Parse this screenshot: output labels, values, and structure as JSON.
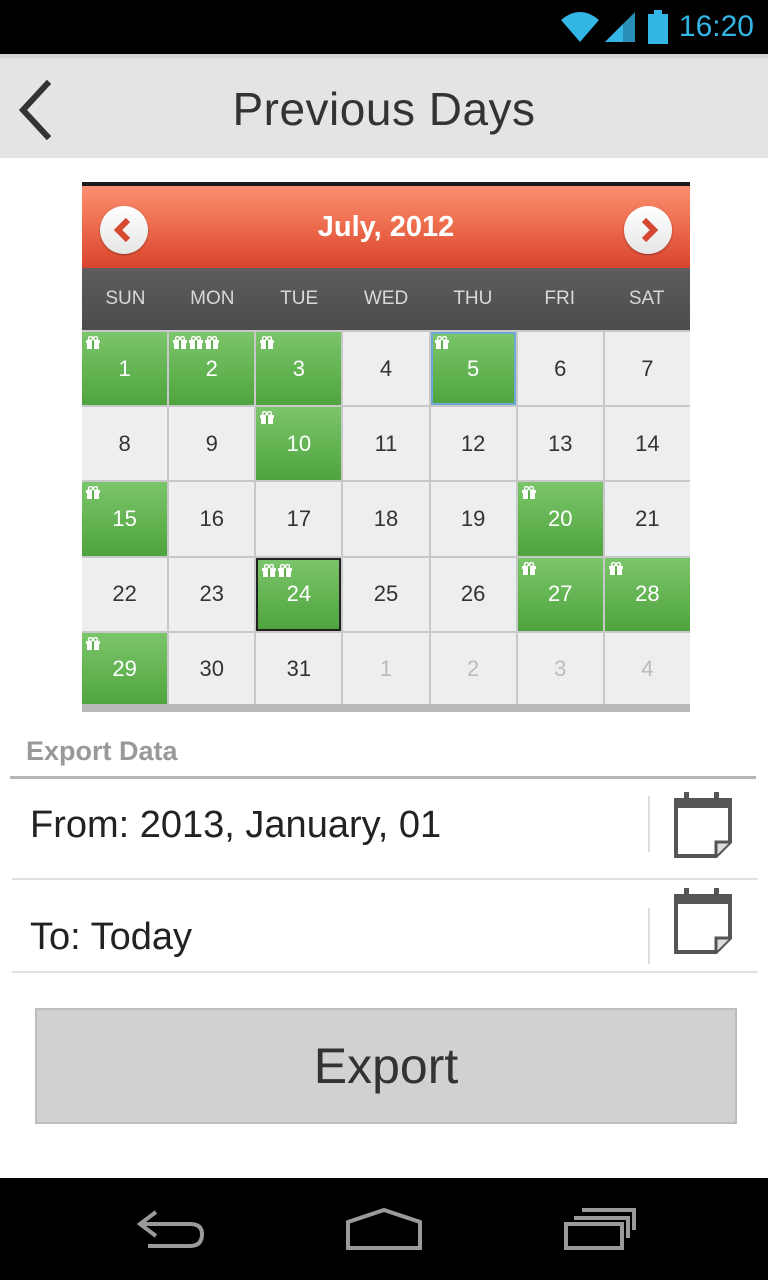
{
  "status_bar": {
    "time": "16:20",
    "icons": [
      "wifi-icon",
      "cell-signal-icon",
      "battery-icon"
    ],
    "accent": "#33b5e5"
  },
  "action_bar": {
    "title": "Previous Days",
    "back_icon": "chevron-left-icon"
  },
  "calendar": {
    "month_title": "July, 2012",
    "weekdays": [
      "SUN",
      "MON",
      "TUE",
      "WED",
      "THU",
      "FRI",
      "SAT"
    ],
    "days": [
      {
        "label": "1",
        "event": true,
        "gifts": 1
      },
      {
        "label": "2",
        "event": true,
        "gifts": 3
      },
      {
        "label": "3",
        "event": true,
        "gifts": 1
      },
      {
        "label": "4",
        "event": false,
        "gifts": 0
      },
      {
        "label": "5",
        "event": true,
        "gifts": 1,
        "selected": true
      },
      {
        "label": "6",
        "event": false,
        "gifts": 0
      },
      {
        "label": "7",
        "event": false,
        "gifts": 0
      },
      {
        "label": "8",
        "event": false,
        "gifts": 0
      },
      {
        "label": "9",
        "event": false,
        "gifts": 0
      },
      {
        "label": "10",
        "event": true,
        "gifts": 1
      },
      {
        "label": "11",
        "event": false,
        "gifts": 0
      },
      {
        "label": "12",
        "event": false,
        "gifts": 0
      },
      {
        "label": "13",
        "event": false,
        "gifts": 0
      },
      {
        "label": "14",
        "event": false,
        "gifts": 0
      },
      {
        "label": "15",
        "event": true,
        "gifts": 1
      },
      {
        "label": "16",
        "event": false,
        "gifts": 0
      },
      {
        "label": "17",
        "event": false,
        "gifts": 0
      },
      {
        "label": "18",
        "event": false,
        "gifts": 0
      },
      {
        "label": "19",
        "event": false,
        "gifts": 0
      },
      {
        "label": "20",
        "event": true,
        "gifts": 1
      },
      {
        "label": "21",
        "event": false,
        "gifts": 0
      },
      {
        "label": "22",
        "event": false,
        "gifts": 0
      },
      {
        "label": "23",
        "event": false,
        "gifts": 0
      },
      {
        "label": "24",
        "event": true,
        "gifts": 2,
        "today": true
      },
      {
        "label": "25",
        "event": false,
        "gifts": 0
      },
      {
        "label": "26",
        "event": false,
        "gifts": 0
      },
      {
        "label": "27",
        "event": true,
        "gifts": 1
      },
      {
        "label": "28",
        "event": true,
        "gifts": 1
      },
      {
        "label": "29",
        "event": true,
        "gifts": 1
      },
      {
        "label": "30",
        "event": false,
        "gifts": 0
      },
      {
        "label": "31",
        "event": false,
        "gifts": 0
      },
      {
        "label": "1",
        "event": false,
        "gifts": 0,
        "other_month": true
      },
      {
        "label": "2",
        "event": false,
        "gifts": 0,
        "other_month": true
      },
      {
        "label": "3",
        "event": false,
        "gifts": 0,
        "other_month": true
      },
      {
        "label": "4",
        "event": false,
        "gifts": 0,
        "other_month": true
      }
    ],
    "colors": {
      "header": "#e8563a",
      "event": "#5cb04b"
    }
  },
  "export": {
    "section_title": "Export Data",
    "from_label": "From: 2013, January, 01",
    "to_label": "To: Today",
    "button_label": "Export"
  },
  "nav_bar": {
    "icons": [
      "back-icon",
      "home-icon",
      "recents-icon"
    ]
  }
}
